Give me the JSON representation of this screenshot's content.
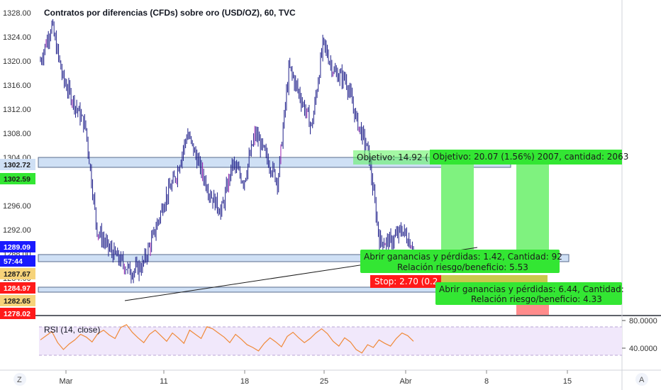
{
  "chart": {
    "title": "Contratos por diferencias (CFDs) sobre oro (USD/OZ), 60, TVC",
    "colors": {
      "candle": "#1f1f8a",
      "candle_highlight": "#9b1fb0",
      "zone_fill": "#cfe0f5",
      "zone_stroke": "#5a6b8c",
      "target_green": "#33e633",
      "target_fill": "#7ff27f",
      "stop_red": "#ff1a1a",
      "stop_fill": "#ff8c8c",
      "rsi_line": "#f08a3a",
      "rsi_band": "#f1e8fb"
    }
  },
  "labels": {
    "objetivo_a": "Objetivo: 14.92 (",
    "objetivo_b": "Objetivo: 20.07 (1.56%) 2007, cantidad: 2063",
    "abrir_a_1": "Abrir ganancias y pérdidas: 1.42, Cantidad: 92",
    "abrir_a_2": "Relación riesgo/beneficio: 5.53",
    "stop_a": "Stop: 2.70 (0.2",
    "abrir_b_1": "Abrir ganancias y pérdidas: 6.44, Cantidad:",
    "abrir_b_2": "Relación riesgo/beneficio: 4.33"
  },
  "price_axis": {
    "ticks": [
      "1328.00",
      "1324.00",
      "1320.00",
      "1316.00",
      "1312.00",
      "1308.00",
      "1304.00",
      "1300.00",
      "1296.00",
      "1292.00",
      "1288.00",
      "1284.00",
      "1280.00"
    ],
    "badges": [
      {
        "text": "1302.72",
        "bg": "#cfe0f5",
        "fg": "#1b1b1b"
      },
      {
        "text": "1302.59",
        "bg": "#33e633",
        "fg": "#1b1b1b"
      },
      {
        "text": "1289.09",
        "bg": "#1a1aff",
        "fg": "#ffffff"
      },
      {
        "text": "57:44",
        "bg": "#1a1aff",
        "fg": "#ffffff"
      },
      {
        "text": "1287.67",
        "bg": "#f6d37a",
        "fg": "#1b1b1b"
      },
      {
        "text": "1284.97",
        "bg": "#ff1a1a",
        "fg": "#ffffff"
      },
      {
        "text": "1282.65",
        "bg": "#f6d37a",
        "fg": "#1b1b1b"
      },
      {
        "text": "1278.02",
        "bg": "#ff1a1a",
        "fg": "#ffffff"
      }
    ]
  },
  "rsi": {
    "label": "RSI (14, close)",
    "ticks": [
      "80.0000",
      "40.0000"
    ]
  },
  "time_axis": {
    "ticks": [
      "Mar",
      "11",
      "18",
      "25",
      "Abr",
      "8",
      "15"
    ]
  },
  "corner_buttons": {
    "left": "Z",
    "right": "A"
  },
  "chart_data": {
    "type": "candlestick",
    "title": "Contratos por diferencias (CFDs) sobre oro (USD/OZ), 60, TVC",
    "x_categories": [
      "Mar",
      "11",
      "18",
      "25",
      "Abr",
      "8",
      "15"
    ],
    "ylim": [
      1277,
      1329
    ],
    "grid": false,
    "price_path": [
      [
        "Feb 27",
        1320
      ],
      [
        "Feb 28",
        1326
      ],
      [
        "Feb 28",
        1317
      ],
      [
        "Mar 1",
        1313
      ],
      [
        "Mar 1",
        1309
      ],
      [
        "Mar 2",
        1292
      ],
      [
        "Mar 4",
        1289
      ],
      [
        "Mar 5",
        1287
      ],
      [
        "Mar 6",
        1285
      ],
      [
        "Mar 7",
        1286
      ],
      [
        "Mar 8",
        1291
      ],
      [
        "Mar 9",
        1297
      ],
      [
        "Mar 11",
        1301
      ],
      [
        "Mar 12",
        1308
      ],
      [
        "Mar 13",
        1303
      ],
      [
        "Mar 14",
        1298
      ],
      [
        "Mar 15",
        1295
      ],
      [
        "Mar 17",
        1303
      ],
      [
        "Mar 18",
        1300
      ],
      [
        "Mar 19",
        1308
      ],
      [
        "Mar 20",
        1304
      ],
      [
        "Mar 21",
        1300
      ],
      [
        "Mar 22",
        1319
      ],
      [
        "Mar 23",
        1314
      ],
      [
        "Mar 24",
        1309
      ],
      [
        "Mar 25",
        1323
      ],
      [
        "Mar 26",
        1318
      ],
      [
        "Mar 27",
        1317
      ],
      [
        "Mar 28",
        1310
      ],
      [
        "Mar 29",
        1305
      ],
      [
        "Mar 30",
        1290
      ],
      [
        "Mar 31",
        1290
      ],
      [
        "Apr 1",
        1292
      ],
      [
        "Apr 2",
        1289
      ]
    ],
    "zones": [
      {
        "name": "upper",
        "from": 1302.6,
        "to": 1304.3
      },
      {
        "name": "middle",
        "from": 1287.7,
        "to": 1288.7
      },
      {
        "name": "lower",
        "from": 1283.6,
        "to": 1284.4
      }
    ],
    "trendline": [
      [
        "Mar 7",
        1282.3
      ],
      [
        "Apr 2",
        1290.1
      ]
    ],
    "rsi": {
      "name": "RSI (14, close)",
      "levels": [
        70,
        30
      ],
      "ylim": [
        20,
        85
      ],
      "values": [
        52,
        58,
        64,
        48,
        38,
        46,
        52,
        60,
        56,
        49,
        61,
        66,
        59,
        54,
        70,
        74,
        63,
        55,
        48,
        60,
        66,
        58,
        50,
        62,
        55,
        47,
        66,
        60,
        54,
        71,
        68,
        62,
        56,
        48,
        60,
        53,
        45,
        41,
        36,
        47,
        55,
        49,
        42,
        57,
        63,
        55,
        48,
        54,
        62,
        68,
        61,
        50,
        43,
        55,
        49,
        38,
        33,
        45,
        41,
        52,
        47,
        43,
        54,
        62,
        58,
        50
      ]
    }
  }
}
